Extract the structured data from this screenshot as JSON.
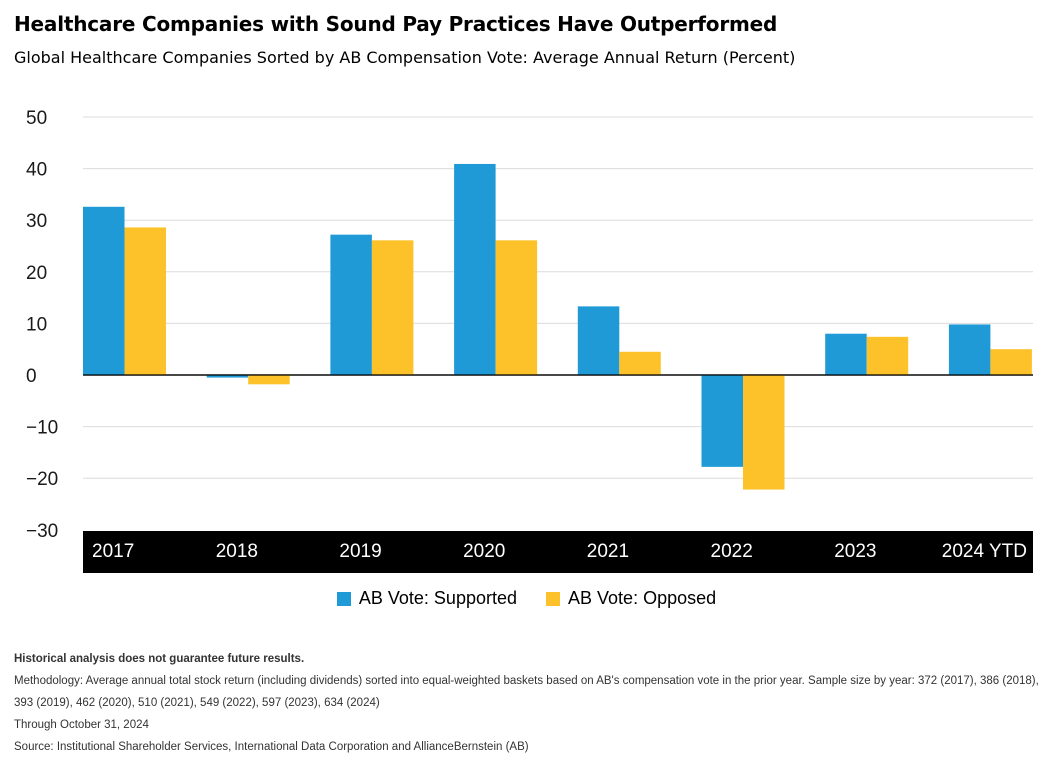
{
  "header": {
    "title": "Healthcare Companies with Sound Pay Practices Have Outperformed",
    "subtitle": "Global Healthcare Companies Sorted by AB Compensation Vote: Average Annual Return (Percent)"
  },
  "chart_data": {
    "type": "bar",
    "title": "Healthcare Companies with Sound Pay Practices Have Outperformed",
    "subtitle": "Global Healthcare Companies Sorted by AB Compensation Vote: Average Annual Return (Percent)",
    "categories": [
      "2017",
      "2018",
      "2019",
      "2020",
      "2021",
      "2022",
      "2023",
      "2024 YTD"
    ],
    "series": [
      {
        "name": "AB Vote: Supported",
        "color": "#1f9ad6",
        "values": [
          32.6,
          -0.5,
          27.2,
          40.9,
          13.3,
          -17.8,
          8.0,
          9.8
        ]
      },
      {
        "name": "AB Vote: Opposed",
        "color": "#fdc12a",
        "values": [
          28.6,
          -1.8,
          26.1,
          26.1,
          4.5,
          -22.2,
          7.4,
          5.0
        ]
      }
    ],
    "ylim": [
      -30,
      50
    ],
    "yticks": [
      50,
      40,
      30,
      20,
      10,
      0,
      -10,
      -20,
      -30
    ],
    "ytick_labels": [
      "50",
      "40",
      "30",
      "20",
      "10",
      "0",
      "−10",
      "−20",
      "−30"
    ],
    "grid": true,
    "legend_position": "bottom-center",
    "xlabel": "",
    "ylabel": ""
  },
  "footnotes": {
    "disclaimer": "Historical analysis does not guarantee future results.",
    "methodology": "Methodology: Average annual total stock return (including dividends) sorted into equal-weighted baskets based on AB's compensation vote in the prior year. Sample size by year: 372 (2017), 386 (2018), 393 (2019), 462 (2020), 510 (2021), 549 (2022), 597 (2023), 634 (2024)",
    "date": "Through October 31, 2024",
    "source": "Source: Institutional Shareholder Services, International Data Corporation and AllianceBernstein (AB)"
  }
}
